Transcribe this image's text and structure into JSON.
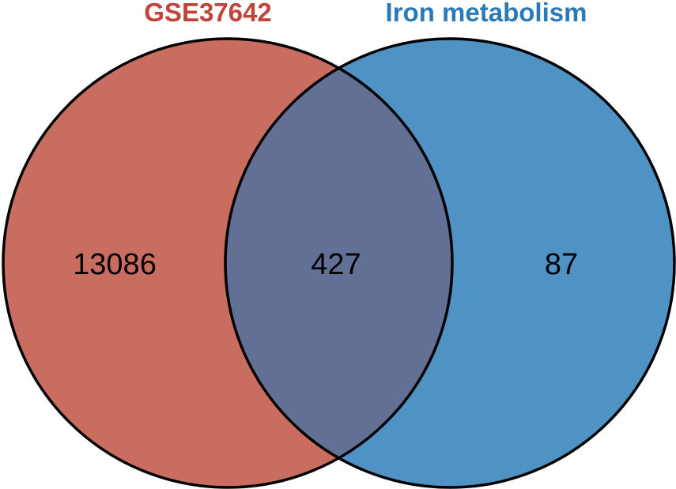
{
  "venn": {
    "sets": [
      {
        "name": "GSE37642",
        "fill_color": "#c86d60",
        "title_color": "#c0443a"
      },
      {
        "name": "Iron metabolism",
        "fill_color": "#4e93c4",
        "title_color": "#2a7ab8"
      }
    ],
    "overlap_color": "#617094",
    "outline_color": "#000000",
    "counts": {
      "only_left": "13086",
      "intersection": "427",
      "only_right": "87"
    }
  }
}
